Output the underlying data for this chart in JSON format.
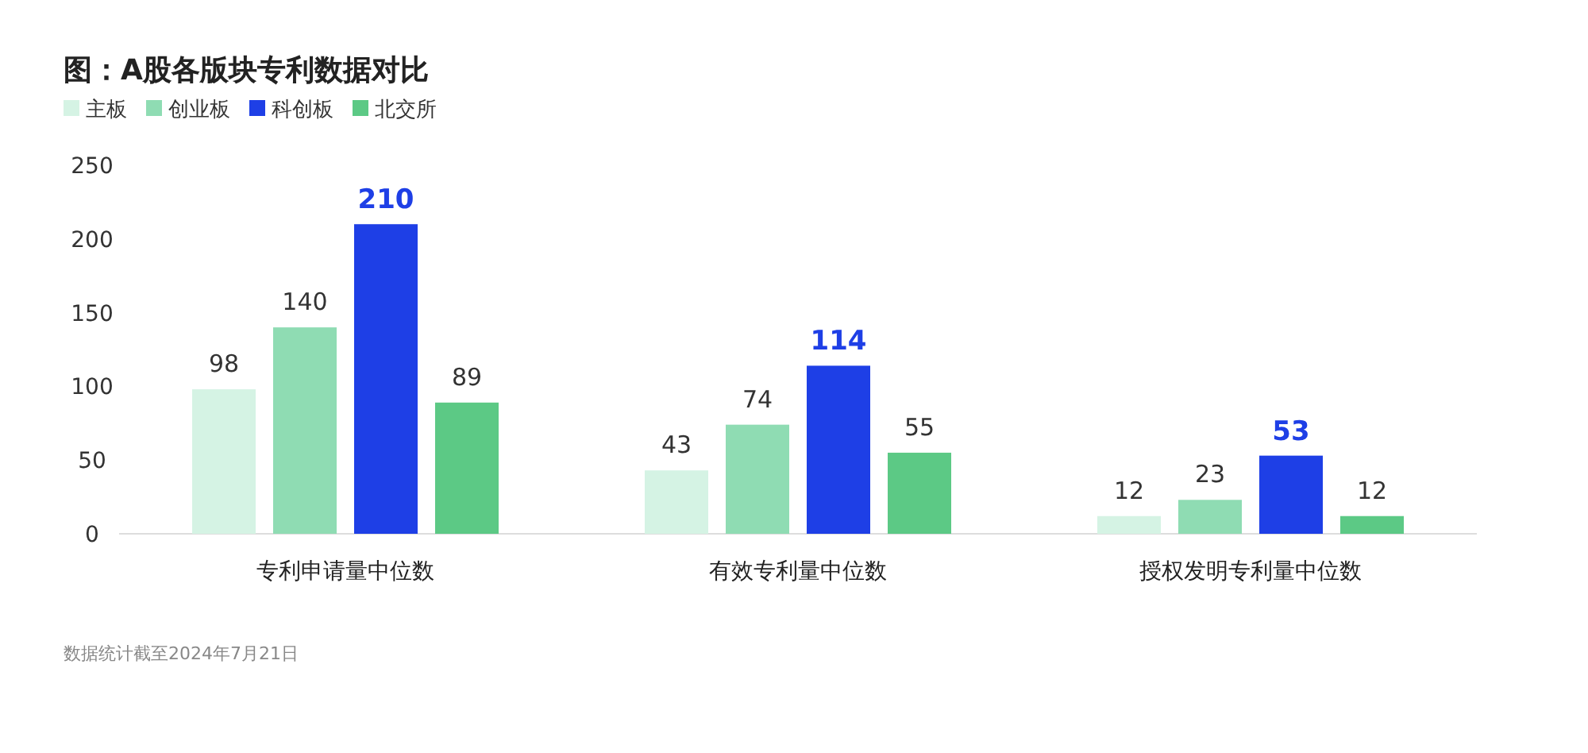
{
  "chart_data": {
    "type": "bar",
    "title": "图：A股各版块专利数据对比",
    "categories": [
      "专利申请量中位数",
      "有效专利量中位数",
      "授权发明专利量中位数"
    ],
    "series": [
      {
        "name": "主板",
        "color": "#d5f3e4",
        "values": [
          98,
          43,
          12
        ]
      },
      {
        "name": "创业板",
        "color": "#8fdcb3",
        "values": [
          140,
          74,
          23
        ]
      },
      {
        "name": "科创板",
        "color": "#1e3fe6",
        "values": [
          210,
          114,
          53
        ]
      },
      {
        "name": "北交所",
        "color": "#5cc985",
        "values": [
          89,
          55,
          12
        ]
      }
    ],
    "ylim": [
      0,
      250
    ],
    "yticks": [
      0,
      50,
      100,
      150,
      200,
      250
    ],
    "grid": false,
    "legend": "top left",
    "data_labels": true,
    "annotations": [
      "数据统计截至2024年7月21日"
    ]
  }
}
